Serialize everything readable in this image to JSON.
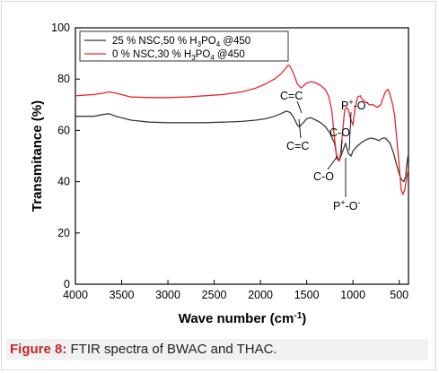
{
  "caption": {
    "label": "Figure 8:",
    "text": "FTIR spectra of BWAC and THAC."
  },
  "chart_data": {
    "type": "line",
    "xlabel": "Wave number (cm",
    "xlabel_sup": "-1",
    "xlabel_close": ")",
    "ylabel": "Transmitance (%)",
    "xlim": [
      4000,
      400
    ],
    "ylim": [
      0,
      100
    ],
    "x_ticks": [
      "4000",
      "3500",
      "3000",
      "2500",
      "2000",
      "1500",
      "1000",
      "500"
    ],
    "y_ticks": [
      "0",
      "20",
      "40",
      "60",
      "80",
      "100"
    ],
    "legend_position": "top-left",
    "grid": false,
    "series": [
      {
        "name_parts": [
          "25 % NSC,50 % H",
          "3",
          "PO",
          "4",
          " @450"
        ],
        "color": "#3a3a3a",
        "x": [
          4000,
          3800,
          3700,
          3640,
          3560,
          3400,
          3200,
          3000,
          2800,
          2600,
          2400,
          2200,
          2050,
          1950,
          1850,
          1780,
          1720,
          1680,
          1640,
          1600,
          1580,
          1550,
          1500,
          1460,
          1400,
          1350,
          1300,
          1250,
          1200,
          1175,
          1150,
          1130,
          1100,
          1080,
          1050,
          1020,
          1000,
          950,
          900,
          850,
          800,
          750,
          720,
          700,
          680,
          650,
          600,
          560,
          540,
          500,
          480,
          450,
          430,
          420,
          410,
          400
        ],
        "y": [
          65.5,
          65.5,
          66.2,
          66.5,
          65.5,
          64,
          63.2,
          63,
          63,
          63,
          63.2,
          63.5,
          64,
          64.5,
          65.5,
          66.5,
          67.5,
          67,
          65,
          62,
          61.5,
          62.5,
          64.5,
          65,
          64,
          63,
          61.5,
          59,
          55,
          50,
          48,
          50,
          53,
          55,
          51,
          50,
          52,
          54,
          55.5,
          56.5,
          57,
          56.5,
          56,
          56.5,
          57,
          57,
          55,
          51,
          48,
          43,
          41,
          40,
          42,
          46,
          49,
          51
        ]
      },
      {
        "name_parts": [
          "0 % NSC,30 % H",
          "3",
          "PO",
          "4",
          " @450"
        ],
        "color": "#e8262a",
        "x": [
          4000,
          3800,
          3700,
          3640,
          3560,
          3400,
          3200,
          3000,
          2800,
          2600,
          2400,
          2200,
          2050,
          1950,
          1850,
          1780,
          1720,
          1700,
          1680,
          1640,
          1600,
          1560,
          1500,
          1450,
          1400,
          1350,
          1300,
          1260,
          1230,
          1200,
          1175,
          1150,
          1130,
          1110,
          1090,
          1070,
          1050,
          1020,
          1000,
          980,
          950,
          920,
          900,
          860,
          820,
          780,
          740,
          700,
          680,
          650,
          620,
          600,
          570,
          550,
          530,
          510,
          490,
          480,
          460,
          440,
          420,
          400
        ],
        "y": [
          73.5,
          74,
          74.5,
          75,
          74.5,
          73,
          72.8,
          72.8,
          73,
          73.5,
          74,
          75,
          76.5,
          78,
          80,
          82,
          84.5,
          85.5,
          85,
          82,
          78,
          76.5,
          78.5,
          79,
          78.5,
          77.5,
          76,
          73,
          68,
          57,
          49,
          48,
          52,
          60,
          68,
          69,
          68,
          64,
          62,
          68,
          73,
          73.5,
          72,
          71,
          70,
          70,
          69,
          70,
          72,
          75,
          76,
          74,
          70,
          66,
          58,
          50,
          42,
          37,
          35,
          37,
          41,
          45
        ]
      }
    ],
    "annotations": [
      "C=C",
      "C=C",
      "C-O",
      "C-O",
      "P",
      "+",
      "-O",
      "-",
      "P",
      "+",
      "-O",
      "-"
    ]
  }
}
